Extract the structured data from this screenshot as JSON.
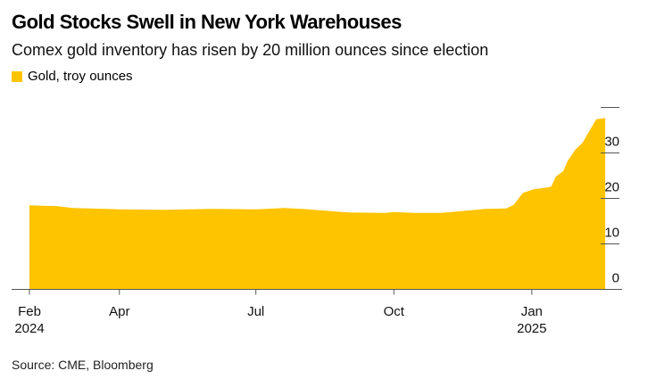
{
  "title": "Gold Stocks Swell in New York Warehouses",
  "subtitle": "Comex gold inventory has risen by 20 million ounces since election",
  "source": "Source: CME, Bloomberg",
  "chart_data": {
    "type": "area",
    "title": "Gold Stocks Swell in New York Warehouses",
    "subtitle": "Comex gold inventory has risen by 20 million ounces since election",
    "legend": "top-left",
    "series": [
      {
        "name": "Gold, troy ounces",
        "color": "#FFC400",
        "points": [
          [
            "2024-02-01",
            18.5
          ],
          [
            "2024-02-20",
            18.3
          ],
          [
            "2024-03-01",
            17.9
          ],
          [
            "2024-04-01",
            17.6
          ],
          [
            "2024-05-01",
            17.5
          ],
          [
            "2024-06-01",
            17.7
          ],
          [
            "2024-07-01",
            17.6
          ],
          [
            "2024-07-20",
            17.9
          ],
          [
            "2024-08-01",
            17.7
          ],
          [
            "2024-08-20",
            17.2
          ],
          [
            "2024-09-01",
            16.9
          ],
          [
            "2024-09-25",
            16.8
          ],
          [
            "2024-10-01",
            17.0
          ],
          [
            "2024-10-15",
            16.8
          ],
          [
            "2024-11-01",
            16.8
          ],
          [
            "2024-11-15",
            17.2
          ],
          [
            "2024-12-01",
            17.7
          ],
          [
            "2024-12-15",
            17.8
          ],
          [
            "2024-12-20",
            18.6
          ],
          [
            "2024-12-26",
            21.2
          ],
          [
            "2025-01-02",
            22.0
          ],
          [
            "2025-01-11",
            22.4
          ],
          [
            "2025-01-14",
            22.6
          ],
          [
            "2025-01-17",
            24.8
          ],
          [
            "2025-01-22",
            26.0
          ],
          [
            "2025-01-25",
            28.3
          ],
          [
            "2025-01-30",
            30.7
          ],
          [
            "2025-02-04",
            32.3
          ],
          [
            "2025-02-08",
            34.6
          ],
          [
            "2025-02-13",
            37.4
          ],
          [
            "2025-02-19",
            37.7
          ]
        ]
      }
    ],
    "x_ticks": [
      {
        "date": "2024-02-01",
        "label": "Feb",
        "sublabel": "2024"
      },
      {
        "date": "2024-04-01",
        "label": "Apr"
      },
      {
        "date": "2024-07-01",
        "label": "Jul"
      },
      {
        "date": "2024-10-01",
        "label": "Oct"
      },
      {
        "date": "2025-01-01",
        "label": "Jan",
        "sublabel": "2025"
      }
    ],
    "y_ticks": [
      0,
      10,
      20,
      30,
      40
    ],
    "y_tick_labels": [
      "0",
      "10",
      "20",
      "30",
      ""
    ],
    "ylim": [
      0,
      40
    ],
    "y_axis_side": "right",
    "grid": false
  }
}
